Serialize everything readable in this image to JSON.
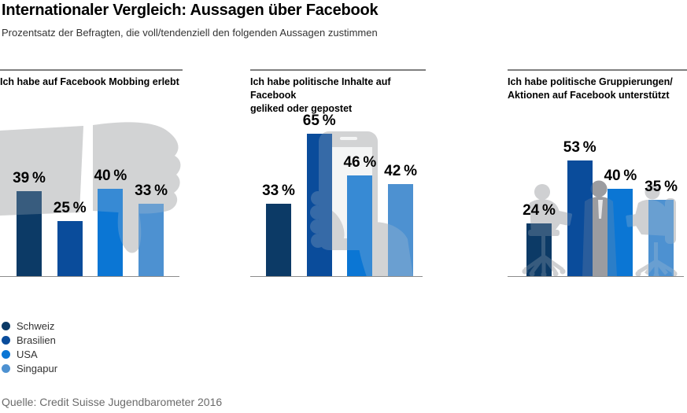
{
  "page": {
    "title": "Internationaler Vergleich: Aussagen über Facebook",
    "subtitle": "Prozentsatz der Befragten, die voll/tendenziell den folgenden Aussagen zustimmen",
    "source": "Quelle: Credit Suisse Jugendbarometer 2016"
  },
  "colors": {
    "schweiz": "#0c3a66",
    "brasilien": "#0a4c9b",
    "usa": "#0b76d4",
    "singapur": "#4d91d1",
    "art_gray": "#d2d3d4",
    "art_gray_dark": "#9b9ca0",
    "axis_line": "#8c8c8c",
    "header_rule": "#7f7f7f"
  },
  "legend": [
    {
      "label": "Schweiz",
      "color": "#0c3a66"
    },
    {
      "label": "Brasilien",
      "color": "#0a4c9b"
    },
    {
      "label": "USA",
      "color": "#0b76d4"
    },
    {
      "label": "Singapur",
      "color": "#4d91d1"
    }
  ],
  "chart_data": [
    {
      "type": "bar",
      "title": "Ich habe auf Facebook Mobbing erlebt",
      "categories": [
        "Schweiz",
        "Brasilien",
        "USA",
        "Singapur"
      ],
      "values": [
        39,
        25,
        40,
        33
      ],
      "labels": [
        "39 %",
        "25 %",
        "40 %",
        "33 %"
      ],
      "unit": "%",
      "ylim": [
        0,
        70
      ],
      "grid": false,
      "background_icon": "thumbs-down-hand"
    },
    {
      "type": "bar",
      "title": "Ich habe politische Inhalte auf Facebook\ngeliked oder gepostet",
      "categories": [
        "Schweiz",
        "Brasilien",
        "USA",
        "Singapur"
      ],
      "values": [
        33,
        65,
        46,
        42
      ],
      "labels": [
        "33 %",
        "65 %",
        "46 %",
        "42 %"
      ],
      "unit": "%",
      "ylim": [
        0,
        70
      ],
      "grid": false,
      "background_icon": "hand-holding-smartphone"
    },
    {
      "type": "bar",
      "title": "Ich habe politische Gruppierungen/\nAktionen auf Facebook unterstützt",
      "categories": [
        "Schweiz",
        "Brasilien",
        "USA",
        "Singapur"
      ],
      "values": [
        24,
        53,
        40,
        35
      ],
      "labels": [
        "24 %",
        "53 %",
        "40 %",
        "35 %"
      ],
      "unit": "%",
      "ylim": [
        0,
        70
      ],
      "grid": false,
      "background_icon": "people-on-office-chairs"
    }
  ]
}
